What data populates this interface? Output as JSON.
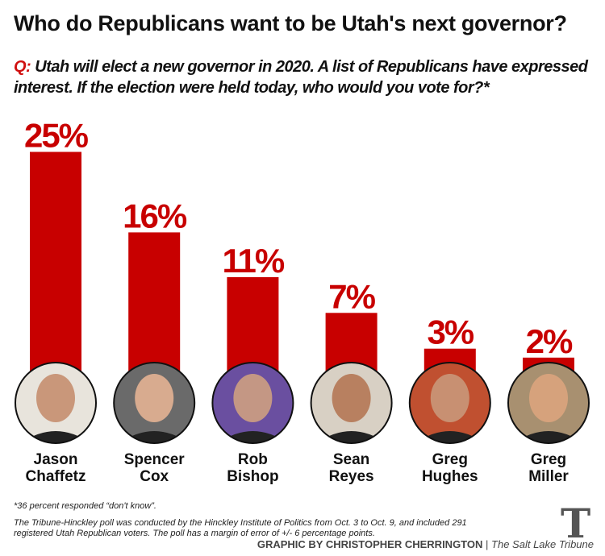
{
  "title": "Who do Republicans want to be Utah's next governor?",
  "question_prefix": "Q:",
  "question": "Utah will elect a new governor in 2020. A list of Republicans have expressed interest. If the election were held today, who would you vote for?*",
  "chart_data": {
    "type": "bar",
    "categories": [
      "Jason Chaffetz",
      "Spencer Cox",
      "Rob Bishop",
      "Sean Reyes",
      "Greg Hughes",
      "Greg Miller"
    ],
    "first_names": [
      "Jason",
      "Spencer",
      "Rob",
      "Sean",
      "Greg",
      "Greg"
    ],
    "last_names": [
      "Chaffetz",
      "Cox",
      "Bishop",
      "Reyes",
      "Hughes",
      "Miller"
    ],
    "values": [
      25,
      16,
      11,
      7,
      3,
      2
    ],
    "labels": [
      "25%",
      "16%",
      "11%",
      "7%",
      "3%",
      "2%"
    ],
    "ylim": [
      0,
      25
    ],
    "bar_color": "#c80000"
  },
  "note_dont_know": "*36 percent responded “don't know”.",
  "note_poll": "The Tribune-Hinckley poll was conducted by the Hinckley Institute of Politics from Oct. 3 to Oct. 9, and included 291 registered Utah Republican voters. The poll has a margin of error of +/- 6 percentage points.",
  "credit_graphic": "GRAPHIC BY CHRISTOPHER CHERRINGTON",
  "credit_sep": "|",
  "credit_paper": "The Salt Lake Tribune",
  "logo": "T"
}
